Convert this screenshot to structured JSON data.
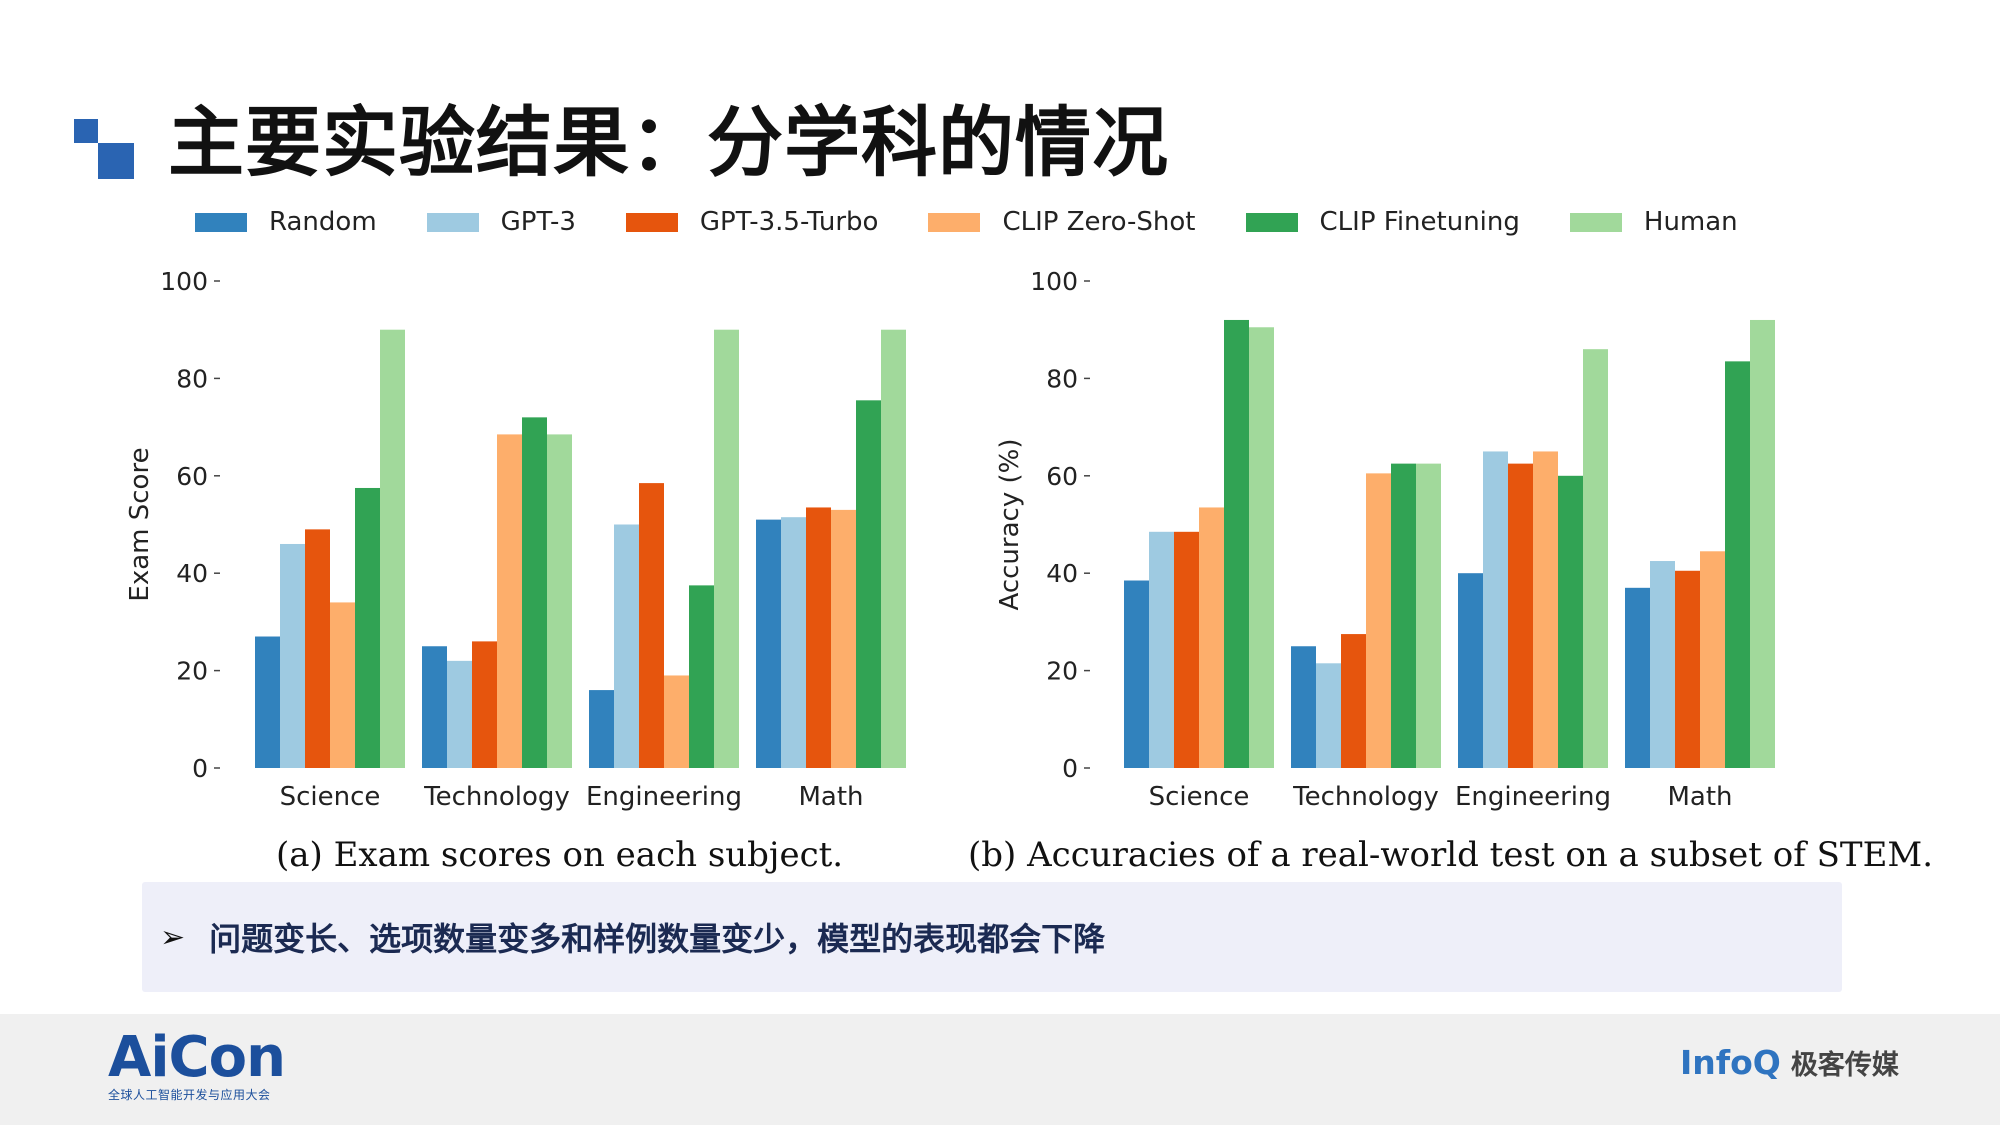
{
  "slide": {
    "title": "主要实验结果：分学科的情况",
    "note": "问题变长、选项数量变多和样例数量变少，模型的表现都会下降",
    "note_bullet": "➢"
  },
  "legend": [
    {
      "name": "Random",
      "color": "#3182bd"
    },
    {
      "name": "GPT-3",
      "color": "#9ecae1"
    },
    {
      "name": "GPT-3.5-Turbo",
      "color": "#e6550d"
    },
    {
      "name": "CLIP Zero-Shot",
      "color": "#fdae6b"
    },
    {
      "name": "CLIP Finetuning",
      "color": "#31a354"
    },
    {
      "name": "Human",
      "color": "#a1d99b"
    }
  ],
  "chart_data": [
    {
      "type": "bar",
      "caption": "(a) Exam scores on each subject.",
      "ylabel": "Exam Score",
      "ylim": [
        0,
        100
      ],
      "yticks": [
        "0",
        "20",
        "40",
        "60",
        "80",
        "100"
      ],
      "categories": [
        "Science",
        "Technology",
        "Engineering",
        "Math"
      ],
      "series": [
        {
          "name": "Random",
          "values": [
            27,
            25,
            16,
            51
          ]
        },
        {
          "name": "GPT-3",
          "values": [
            46,
            22,
            50,
            51.5
          ]
        },
        {
          "name": "GPT-3.5-Turbo",
          "values": [
            49,
            26,
            58.5,
            53.5
          ]
        },
        {
          "name": "CLIP Zero-Shot",
          "values": [
            34,
            68.5,
            19,
            53
          ]
        },
        {
          "name": "CLIP Finetuning",
          "values": [
            57.5,
            72,
            37.5,
            75.5
          ]
        },
        {
          "name": "Human",
          "values": [
            90,
            68.5,
            90,
            90
          ]
        }
      ]
    },
    {
      "type": "bar",
      "caption": "(b) Accuracies of a real-world test on a subset of STEM.",
      "ylabel": "Accuracy (%)",
      "ylim": [
        0,
        100
      ],
      "yticks": [
        "0",
        "20",
        "40",
        "60",
        "80",
        "100"
      ],
      "categories": [
        "Science",
        "Technology",
        "Engineering",
        "Math"
      ],
      "series": [
        {
          "name": "Random",
          "values": [
            38.5,
            25,
            40,
            37
          ]
        },
        {
          "name": "GPT-3",
          "values": [
            48.5,
            21.5,
            65,
            42.5
          ]
        },
        {
          "name": "GPT-3.5-Turbo",
          "values": [
            48.5,
            27.5,
            62.5,
            40.5
          ]
        },
        {
          "name": "CLIP Zero-Shot",
          "values": [
            53.5,
            60.5,
            65,
            44.5
          ]
        },
        {
          "name": "CLIP Finetuning",
          "values": [
            92,
            62.5,
            60,
            83.5
          ]
        },
        {
          "name": "Human",
          "values": [
            90.5,
            62.5,
            86,
            92
          ]
        }
      ]
    }
  ],
  "footer": {
    "aicon_mark": "AiCon",
    "aicon_sub": "全球人工智能开发与应用大会",
    "infoq_mark": "InfoQ",
    "infoq_sub": "极客传媒"
  }
}
